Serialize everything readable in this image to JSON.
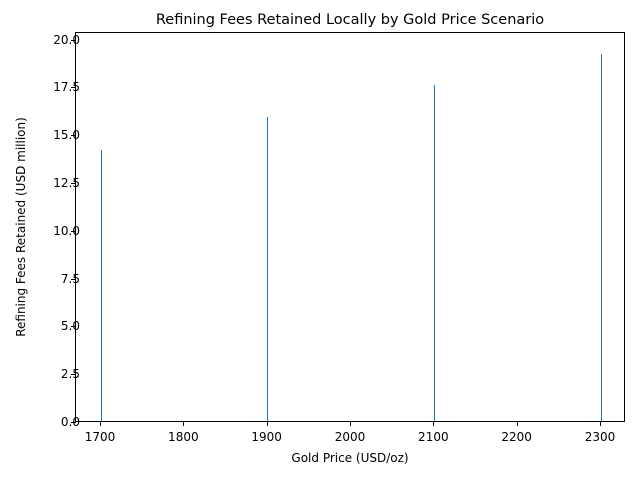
{
  "chart_data": {
    "type": "bar",
    "title": "Refining Fees Retained Locally by Gold Price Scenario",
    "xlabel": "Gold Price (USD/oz)",
    "ylabel": "Refining Fees Retained (USD million)",
    "categories": [
      1700,
      1900,
      2100,
      2300
    ],
    "values": [
      14.2,
      15.9,
      17.6,
      19.2
    ],
    "xlim": [
      1670,
      2330
    ],
    "ylim": [
      0,
      20.4
    ],
    "xticks": [
      "1700",
      "1800",
      "1900",
      "2000",
      "2100",
      "2200",
      "2300"
    ],
    "yticks": [
      "0.0",
      "2.5",
      "5.0",
      "7.5",
      "10.0",
      "12.5",
      "15.0",
      "17.5",
      "20.0"
    ],
    "bar_color": "#1f77b4",
    "grid": false,
    "legend": null
  }
}
